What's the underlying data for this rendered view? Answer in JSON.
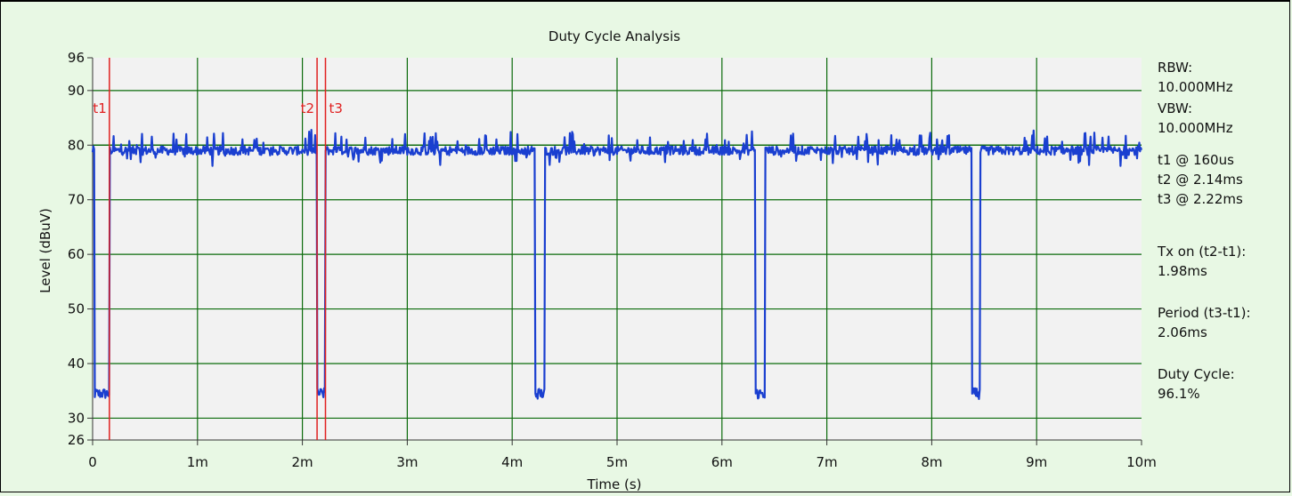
{
  "chart_data": {
    "type": "line",
    "title": "Duty Cycle Analysis",
    "xlabel": "Time (s)",
    "ylabel": "Level (dBuV)",
    "xlim": [
      0,
      10
    ],
    "ylim": [
      26,
      96
    ],
    "x_unit": "ms",
    "x_ticks": [
      {
        "v": 0,
        "label": "0"
      },
      {
        "v": 1,
        "label": "1m"
      },
      {
        "v": 2,
        "label": "2m"
      },
      {
        "v": 3,
        "label": "3m"
      },
      {
        "v": 4,
        "label": "4m"
      },
      {
        "v": 5,
        "label": "5m"
      },
      {
        "v": 6,
        "label": "6m"
      },
      {
        "v": 7,
        "label": "7m"
      },
      {
        "v": 8,
        "label": "8m"
      },
      {
        "v": 9,
        "label": "9m"
      },
      {
        "v": 10,
        "label": "10m"
      }
    ],
    "y_ticks": [
      26,
      30,
      40,
      50,
      60,
      70,
      80,
      90,
      96
    ],
    "grid": true,
    "reference_level": 80,
    "series": [
      {
        "color": "#1a3fd0",
        "on_level": 79,
        "off_level": 34.5,
        "off_intervals_ms": [
          [
            0.02,
            0.16
          ],
          [
            2.14,
            2.22
          ],
          [
            4.22,
            4.31
          ],
          [
            6.32,
            6.41
          ],
          [
            8.38,
            8.46
          ]
        ]
      }
    ],
    "markers": [
      {
        "name": "t1",
        "x": 0.16
      },
      {
        "name": "t2",
        "x": 2.14
      },
      {
        "name": "t3",
        "x": 2.22
      }
    ],
    "colors": {
      "background": "#e8f8e4",
      "plot_area": "#f2f2f2",
      "grid": "#0b6b0b",
      "marker": "#e02020",
      "trace": "#1a3fd0"
    }
  },
  "side_panel": [
    {
      "lines": [
        "RBW:",
        "10.000MHz"
      ]
    },
    {
      "lines": [
        "VBW:",
        "10.000MHz"
      ]
    },
    {
      "lines": [
        "t1 @ 160us",
        "t2 @ 2.14ms",
        "t3 @ 2.22ms"
      ]
    },
    {
      "lines": [
        "Tx on (t2-t1):",
        "1.98ms"
      ]
    },
    {
      "lines": [
        "Period (t3-t1):",
        "2.06ms"
      ]
    },
    {
      "lines": [
        "Duty Cycle:",
        "96.1%"
      ]
    }
  ]
}
